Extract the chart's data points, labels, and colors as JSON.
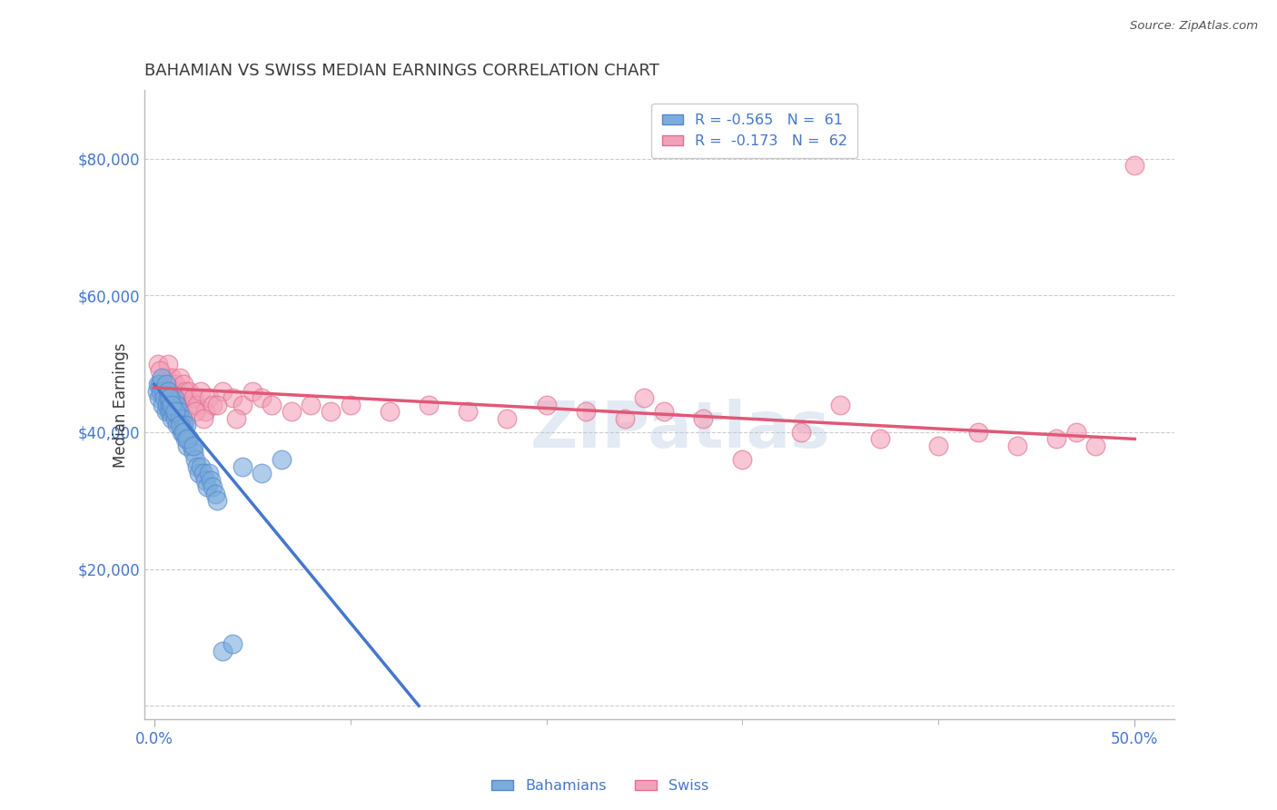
{
  "title": "BAHAMIAN VS SWISS MEDIAN EARNINGS CORRELATION CHART",
  "source_text": "Source: ZipAtlas.com",
  "ylabel": "Median Earnings",
  "xlim": [
    -0.5,
    52.0
  ],
  "ylim": [
    -2000,
    90000
  ],
  "yticks": [
    0,
    20000,
    40000,
    60000,
    80000
  ],
  "ytick_labels": [
    "",
    "$20,000",
    "$40,000",
    "$60,000",
    "$80,000"
  ],
  "xticks": [
    0.0,
    50.0
  ],
  "xtick_labels": [
    "0.0%",
    "50.0%"
  ],
  "xtick_minor": [
    10.0,
    20.0,
    30.0,
    40.0
  ],
  "watermark": "ZIPatlas",
  "legend_label_blue": "R = -0.565   N =  61",
  "legend_label_pink": "R =  -0.173   N =  62",
  "bahamian_label": "Bahamians",
  "swiss_label": "Swiss",
  "blue_color": "#7aacdc",
  "pink_color": "#f4a0b8",
  "blue_edge_color": "#5588cc",
  "pink_edge_color": "#e07090",
  "blue_line_color": "#4477cc",
  "pink_line_color": "#e05878",
  "title_color": "#3a3a3a",
  "axis_label_color": "#3a3a3a",
  "tick_label_color": "#4477cc",
  "source_color": "#555555",
  "grid_color": "#cccccc",
  "background_color": "#ffffff",
  "bahamians_x": [
    0.15,
    0.2,
    0.25,
    0.3,
    0.35,
    0.4,
    0.45,
    0.5,
    0.55,
    0.6,
    0.65,
    0.7,
    0.75,
    0.8,
    0.85,
    0.9,
    0.95,
    1.0,
    1.05,
    1.1,
    1.15,
    1.2,
    1.25,
    1.3,
    1.35,
    1.4,
    1.45,
    1.5,
    1.55,
    1.6,
    1.65,
    1.7,
    1.8,
    1.9,
    2.0,
    2.1,
    2.2,
    2.3,
    2.4,
    2.5,
    2.6,
    2.7,
    2.8,
    2.9,
    3.0,
    3.1,
    3.2,
    3.5,
    4.0,
    4.5,
    5.5,
    6.5,
    0.6,
    0.7,
    0.8,
    0.9,
    1.1,
    1.3,
    1.5,
    1.7,
    2.0
  ],
  "bahamians_y": [
    46000,
    47000,
    45000,
    47000,
    46000,
    48000,
    44000,
    46000,
    45000,
    43000,
    44000,
    45000,
    43000,
    44000,
    43000,
    42000,
    44000,
    43000,
    45000,
    42000,
    44000,
    41000,
    43000,
    42000,
    41000,
    40000,
    42000,
    41000,
    40000,
    39000,
    41000,
    38000,
    39000,
    38000,
    37000,
    36000,
    35000,
    34000,
    35000,
    34000,
    33000,
    32000,
    34000,
    33000,
    32000,
    31000,
    30000,
    8000,
    9000,
    35000,
    34000,
    36000,
    47000,
    46000,
    45000,
    44000,
    43000,
    41000,
    40000,
    39000,
    38000
  ],
  "swiss_x": [
    0.2,
    0.4,
    0.5,
    0.6,
    0.7,
    0.8,
    0.9,
    1.0,
    1.1,
    1.2,
    1.3,
    1.4,
    1.5,
    1.6,
    1.7,
    1.8,
    1.9,
    2.0,
    2.2,
    2.4,
    2.6,
    2.8,
    3.0,
    3.5,
    4.0,
    4.5,
    5.0,
    5.5,
    6.0,
    7.0,
    8.0,
    9.0,
    10.0,
    12.0,
    14.0,
    16.0,
    18.0,
    20.0,
    22.0,
    24.0,
    25.0,
    26.0,
    28.0,
    30.0,
    33.0,
    35.0,
    37.0,
    40.0,
    42.0,
    44.0,
    46.0,
    47.0,
    48.0,
    0.3,
    0.8,
    1.2,
    1.6,
    2.1,
    2.5,
    3.2,
    4.2,
    50.0
  ],
  "swiss_y": [
    50000,
    47000,
    46000,
    48000,
    50000,
    47000,
    48000,
    46000,
    47000,
    46000,
    48000,
    45000,
    47000,
    46000,
    45000,
    46000,
    44000,
    45000,
    44000,
    46000,
    43000,
    45000,
    44000,
    46000,
    45000,
    44000,
    46000,
    45000,
    44000,
    43000,
    44000,
    43000,
    44000,
    43000,
    44000,
    43000,
    42000,
    44000,
    43000,
    42000,
    45000,
    43000,
    42000,
    36000,
    40000,
    44000,
    39000,
    38000,
    40000,
    38000,
    39000,
    40000,
    38000,
    49000,
    43000,
    44000,
    42000,
    43000,
    42000,
    44000,
    42000,
    79000
  ],
  "blue_trendline_x": [
    0.0,
    13.5
  ],
  "blue_trendline_y": [
    47000,
    0
  ],
  "pink_trendline_x": [
    0.0,
    50.0
  ],
  "pink_trendline_y": [
    46500,
    39000
  ]
}
